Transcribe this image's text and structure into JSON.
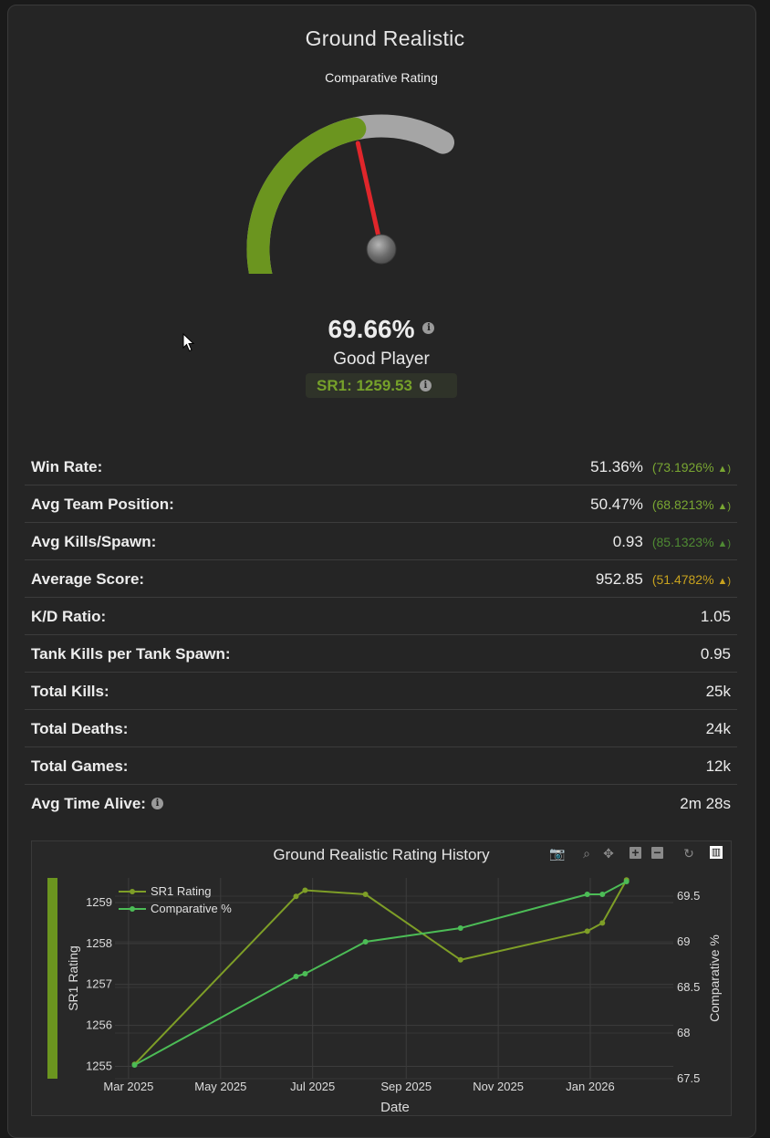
{
  "title": "Ground Realistic",
  "gauge": {
    "subtitle": "Comparative Rating",
    "value_pct": 69.66,
    "value_text": "69.66%",
    "player_label": "Good Player",
    "sr_text": "SR1: 1259.53",
    "colors": {
      "fill": "#6b951f",
      "track": "#a5a5a5",
      "needle": "#e0262b"
    }
  },
  "stats": [
    {
      "label": "Win Rate:",
      "value": "51.36%",
      "delta": "(73.1926%",
      "arrow": "▲)",
      "delta_color": "#79a632",
      "has_info": false
    },
    {
      "label": "Avg Team Position:",
      "value": "50.47%",
      "delta": "(68.8213%",
      "arrow": "▲)",
      "delta_color": "#79a632",
      "has_info": false
    },
    {
      "label": "Avg Kills/Spawn:",
      "value": "0.93",
      "delta": "(85.1323%",
      "arrow": "▲)",
      "delta_color": "#4f8a33",
      "has_info": false
    },
    {
      "label": "Average Score:",
      "value": "952.85",
      "delta": "(51.4782%",
      "arrow": "▲)",
      "delta_color": "#c8a21e",
      "has_info": false
    },
    {
      "label": "K/D Ratio:",
      "value": "1.05",
      "delta": "",
      "arrow": "",
      "delta_color": "",
      "has_info": false
    },
    {
      "label": "Tank Kills per Tank Spawn:",
      "value": "0.95",
      "delta": "",
      "arrow": "",
      "delta_color": "",
      "has_info": false
    },
    {
      "label": "Total Kills:",
      "value": "25k",
      "delta": "",
      "arrow": "",
      "delta_color": "",
      "has_info": false
    },
    {
      "label": "Total Deaths:",
      "value": "24k",
      "delta": "",
      "arrow": "",
      "delta_color": "",
      "has_info": false
    },
    {
      "label": "Total Games:",
      "value": "12k",
      "delta": "",
      "arrow": "",
      "delta_color": "",
      "has_info": false
    },
    {
      "label": "Avg Time Alive:",
      "value": "2m 28s",
      "delta": "",
      "arrow": "",
      "delta_color": "",
      "has_info": true
    }
  ],
  "toolbar": [
    "camera-icon",
    "zoom-icon",
    "pan-icon",
    "zoom-in-icon",
    "zoom-out-icon",
    "reset-icon",
    "plotly-logo-icon"
  ],
  "chart_data": {
    "type": "line",
    "title": "Ground Realistic Rating History",
    "xlabel": "Date",
    "ylabel": "SR1 Rating",
    "y2label": "Comparative %",
    "x_ticks": [
      "Mar 2025",
      "May 2025",
      "Jul 2025",
      "Sep 2025",
      "Nov 2025",
      "Jan 2026"
    ],
    "y_ticks": [
      1255,
      1256,
      1257,
      1258,
      1259
    ],
    "y2_ticks": [
      67.5,
      68,
      68.5,
      69,
      69.5
    ],
    "ylim": [
      1254.7,
      1259.6
    ],
    "y2lim": [
      67.5,
      69.7
    ],
    "xlim": [
      "2025-02-20",
      "2026-02-25"
    ],
    "legend_position": "top-left",
    "grid": true,
    "series": [
      {
        "name": "SR1 Rating",
        "axis": "left",
        "color": "#7e9e27",
        "x": [
          "2025-03-05",
          "2025-06-20",
          "2025-06-26",
          "2025-08-05",
          "2025-10-07",
          "2025-12-30",
          "2026-01-09",
          "2026-01-25"
        ],
        "y": [
          1255.05,
          1259.15,
          1259.3,
          1259.2,
          1257.6,
          1258.3,
          1258.5,
          1259.55
        ]
      },
      {
        "name": "Comparative %",
        "axis": "right",
        "color": "#4cbc56",
        "x": [
          "2025-03-05",
          "2025-06-20",
          "2025-06-26",
          "2025-08-05",
          "2025-10-07",
          "2025-12-30",
          "2026-01-09",
          "2026-01-25"
        ],
        "y": [
          67.65,
          68.62,
          68.65,
          69.0,
          69.15,
          69.52,
          69.52,
          69.66
        ]
      }
    ]
  }
}
